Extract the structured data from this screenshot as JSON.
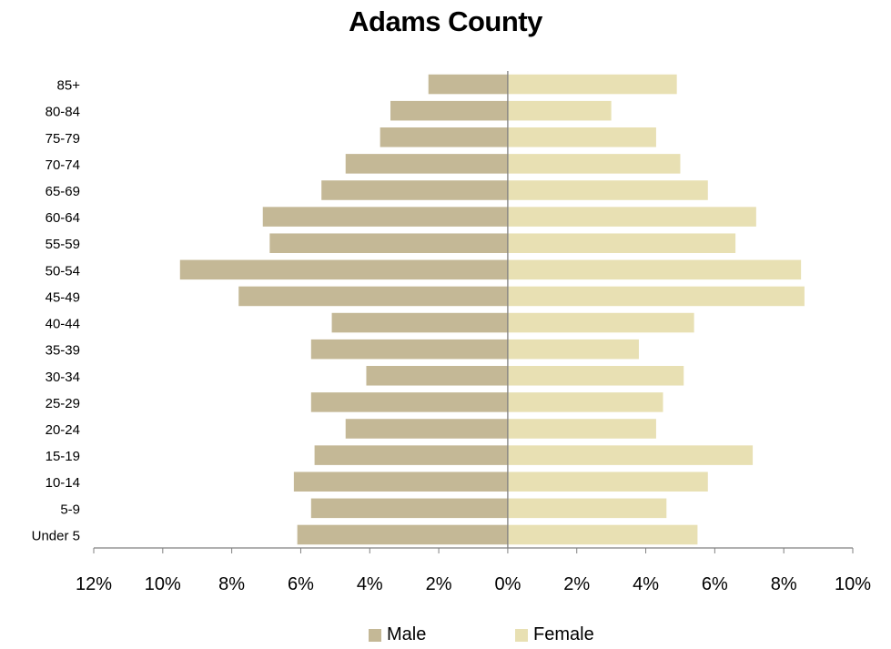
{
  "chart_data": {
    "type": "bar",
    "orientation": "horizontal",
    "title": "Adams County",
    "categories": [
      "Under 5",
      "5-9",
      "10-14",
      "15-19",
      "20-24",
      "25-29",
      "30-34",
      "35-39",
      "40-44",
      "45-49",
      "50-54",
      "55-59",
      "60-64",
      "65-69",
      "70-74",
      "75-79",
      "80-84",
      "85+"
    ],
    "series": [
      {
        "name": "Male",
        "color": "#c4b896",
        "direction": "left",
        "values": [
          6.1,
          5.7,
          6.2,
          5.6,
          4.7,
          5.7,
          4.1,
          5.7,
          5.1,
          7.8,
          9.5,
          6.9,
          7.1,
          5.4,
          4.7,
          3.7,
          3.4,
          2.3
        ]
      },
      {
        "name": "Female",
        "color": "#e8e0b3",
        "direction": "right",
        "values": [
          5.5,
          4.6,
          5.8,
          7.1,
          4.3,
          4.5,
          5.1,
          3.8,
          5.4,
          8.6,
          8.5,
          6.6,
          7.2,
          5.8,
          5.0,
          4.3,
          3.0,
          4.9
        ]
      }
    ],
    "x_tick_labels": [
      "12%",
      "10%",
      "8%",
      "6%",
      "4%",
      "2%",
      "0%",
      "2%",
      "4%",
      "6%",
      "8%",
      "10%"
    ],
    "xlim": [
      -12,
      10
    ],
    "grid": false,
    "legend_position": "bottom"
  }
}
